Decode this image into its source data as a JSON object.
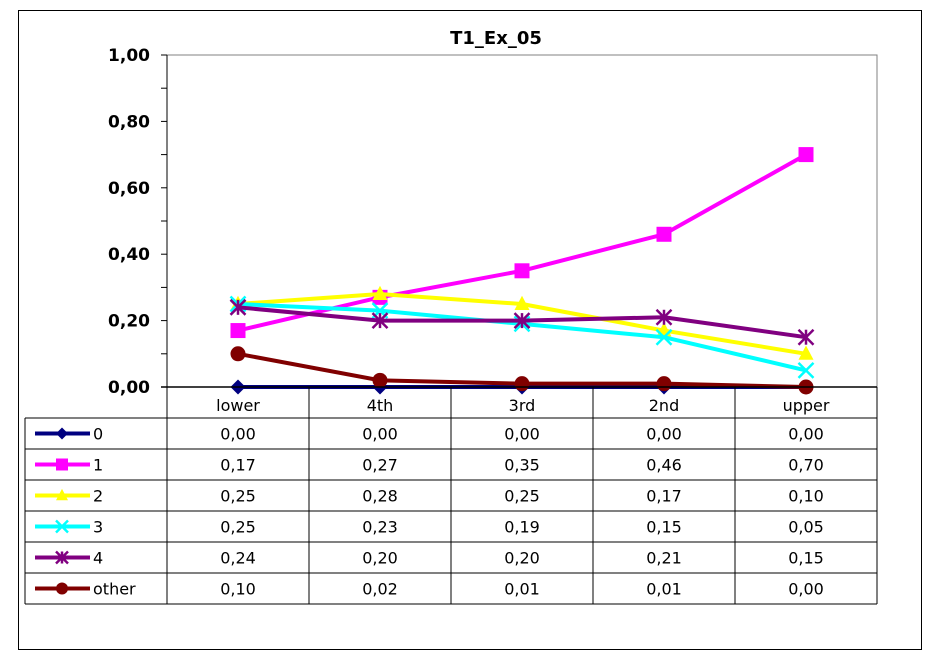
{
  "chart_data": {
    "type": "line",
    "title": "T1_Ex_05",
    "xlabel": "",
    "ylabel": "",
    "categories": [
      "lower",
      "4th",
      "3rd",
      "2nd",
      "upper"
    ],
    "ylim": [
      0,
      1
    ],
    "yticks": [
      "0,00",
      "0,20",
      "0,40",
      "0,60",
      "0,80",
      "1,00"
    ],
    "yticks_values": [
      0,
      0.2,
      0.4,
      0.6,
      0.8,
      1.0
    ],
    "grid": false,
    "legend": "data-table",
    "series": [
      {
        "name": "0",
        "color": "#000080",
        "marker": "diamond",
        "values": [
          0.0,
          0.0,
          0.0,
          0.0,
          0.0
        ],
        "labels": [
          "0,00",
          "0,00",
          "0,00",
          "0,00",
          "0,00"
        ]
      },
      {
        "name": "1",
        "color": "#ff00ff",
        "marker": "square",
        "values": [
          0.17,
          0.27,
          0.35,
          0.46,
          0.7
        ],
        "labels": [
          "0,17",
          "0,27",
          "0,35",
          "0,46",
          "0,70"
        ]
      },
      {
        "name": "2",
        "color": "#ffff00",
        "marker": "triangle",
        "values": [
          0.25,
          0.28,
          0.25,
          0.17,
          0.1
        ],
        "labels": [
          "0,25",
          "0,28",
          "0,25",
          "0,17",
          "0,10"
        ]
      },
      {
        "name": "3",
        "color": "#00ffff",
        "marker": "x",
        "values": [
          0.25,
          0.23,
          0.19,
          0.15,
          0.05
        ],
        "labels": [
          "0,25",
          "0,23",
          "0,19",
          "0,15",
          "0,05"
        ]
      },
      {
        "name": "4",
        "color": "#800080",
        "marker": "star",
        "values": [
          0.24,
          0.2,
          0.2,
          0.21,
          0.15
        ],
        "labels": [
          "0,24",
          "0,20",
          "0,20",
          "0,21",
          "0,15"
        ]
      },
      {
        "name": "other",
        "color": "#800000",
        "marker": "circle",
        "values": [
          0.1,
          0.02,
          0.01,
          0.01,
          0.0
        ],
        "labels": [
          "0,10",
          "0,02",
          "0,01",
          "0,01",
          "0,00"
        ]
      }
    ]
  }
}
